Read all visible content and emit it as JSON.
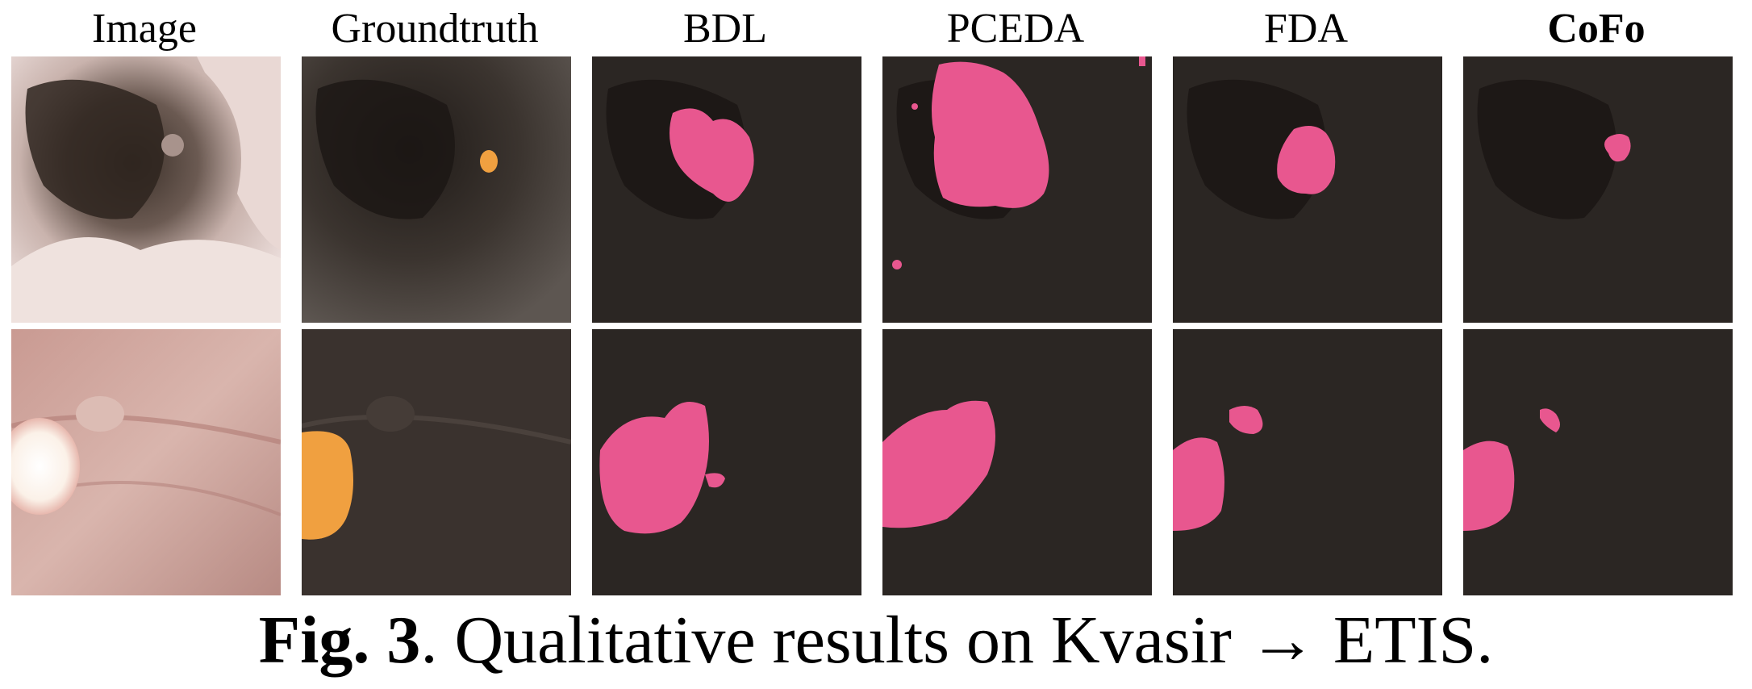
{
  "columns": [
    {
      "label": "Image",
      "bold": false
    },
    {
      "label": "Groundtruth",
      "bold": false
    },
    {
      "label": "BDL",
      "bold": false
    },
    {
      "label": "PCEDA",
      "bold": false
    },
    {
      "label": "FDA",
      "bold": false
    },
    {
      "label": "CoFo",
      "bold": true
    }
  ],
  "caption": {
    "figure_number": "Fig. 3",
    "text": ". Qualitative results on Kvasir → ETIS."
  },
  "colors": {
    "groundtruth_mask": "#f0a040",
    "prediction_mask": "#e8578f",
    "dark_background": "#2b2623"
  }
}
